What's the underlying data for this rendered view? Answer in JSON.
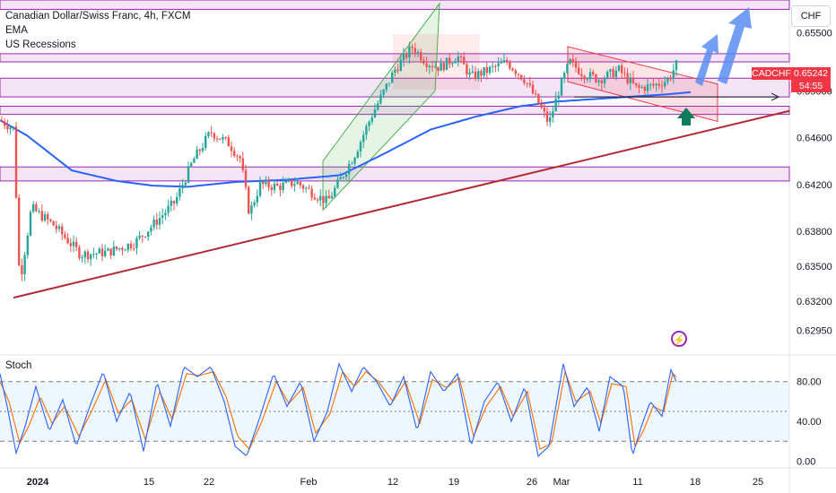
{
  "legend": {
    "title": "Canadian Dollar/Swiss Franc, 4h, FXCM",
    "indicators": [
      "EMA",
      "US Recessions"
    ]
  },
  "currency_button": "CHF",
  "price_tag": {
    "symbol": "CADCHF",
    "price": "0.65242",
    "countdown": "54:55"
  },
  "oscillator_label": "Stoch",
  "lightning_icon": "lightning-icon",
  "colors": {
    "up": "#26a69a",
    "down": "#ef5350",
    "ema": "#2962ff",
    "trendline": "#b22833",
    "zone": "#9c27b0",
    "stoch_k": "#2962ff",
    "stoch_d": "#ff6d00"
  },
  "chart_data": [
    {
      "type": "candlestick",
      "symbol": "CADCHF",
      "timeframe": "4h",
      "ylim": [
        0.6277,
        0.6578
      ],
      "y_ticks": [
        0.6295,
        0.632,
        0.635,
        0.638,
        0.642,
        0.646,
        0.65,
        0.655
      ],
      "y_tick_labels": [
        "0.62950",
        "0.63200",
        "0.63500",
        "0.63800",
        "0.64200",
        "0.64600",
        "0.65000",
        "0.65500"
      ],
      "x_tick_labels": [
        "2024",
        "15",
        "22",
        "Feb",
        "12",
        "19",
        "26",
        "Mar",
        "11",
        "18",
        "25"
      ],
      "ema_anchors": [
        [
          0,
          0.6475
        ],
        [
          30,
          0.6462
        ],
        [
          80,
          0.6432
        ],
        [
          130,
          0.6423
        ],
        [
          170,
          0.6419
        ],
        [
          210,
          0.6418
        ],
        [
          260,
          0.6422
        ],
        [
          320,
          0.6424
        ],
        [
          380,
          0.6428
        ],
        [
          430,
          0.6447
        ],
        [
          480,
          0.6467
        ],
        [
          530,
          0.6478
        ],
        [
          580,
          0.6487
        ],
        [
          620,
          0.6491
        ],
        [
          680,
          0.6494
        ],
        [
          740,
          0.6497
        ],
        [
          770,
          0.6499
        ]
      ],
      "close_anchors": [
        [
          0,
          0.6475
        ],
        [
          15,
          0.6468
        ],
        [
          22,
          0.6335
        ],
        [
          35,
          0.64
        ],
        [
          60,
          0.6385
        ],
        [
          90,
          0.636
        ],
        [
          120,
          0.6362
        ],
        [
          150,
          0.637
        ],
        [
          170,
          0.6385
        ],
        [
          195,
          0.6405
        ],
        [
          215,
          0.644
        ],
        [
          235,
          0.6465
        ],
        [
          255,
          0.6455
        ],
        [
          268,
          0.6442
        ],
        [
          278,
          0.6395
        ],
        [
          290,
          0.642
        ],
        [
          310,
          0.6418
        ],
        [
          330,
          0.6422
        ],
        [
          350,
          0.6412
        ],
        [
          365,
          0.6405
        ],
        [
          380,
          0.6425
        ],
        [
          395,
          0.6445
        ],
        [
          415,
          0.648
        ],
        [
          440,
          0.6518
        ],
        [
          460,
          0.6538
        ],
        [
          475,
          0.6525
        ],
        [
          490,
          0.652
        ],
        [
          510,
          0.653
        ],
        [
          525,
          0.6512
        ],
        [
          545,
          0.6518
        ],
        [
          565,
          0.6525
        ],
        [
          585,
          0.651
        ],
        [
          600,
          0.649
        ],
        [
          612,
          0.6472
        ],
        [
          622,
          0.6498
        ],
        [
          635,
          0.6525
        ],
        [
          650,
          0.6515
        ],
        [
          668,
          0.651
        ],
        [
          690,
          0.6518
        ],
        [
          710,
          0.6502
        ],
        [
          730,
          0.6505
        ],
        [
          745,
          0.651
        ],
        [
          755,
          0.6524
        ]
      ],
      "horizontal_zones": [
        [
          0.657,
          0.6578
        ],
        [
          0.6525,
          0.6532
        ],
        [
          0.6495,
          0.6511
        ],
        [
          0.648,
          0.6487
        ],
        [
          0.6423,
          0.6435
        ]
      ],
      "trendline": {
        "from": [
          15,
          0.6323
        ],
        "to": [
          880,
          0.6483
        ]
      },
      "ascending_channel": {
        "lower": [
          [
            360,
            0.6398
          ],
          [
            485,
            0.65
          ]
        ],
        "upper": [
          [
            360,
            0.644
          ],
          [
            490,
            0.6575
          ]
        ]
      },
      "descending_channel": {
        "upper": [
          [
            633,
            0.6538
          ],
          [
            800,
            0.6506
          ]
        ],
        "lower": [
          [
            633,
            0.6508
          ],
          [
            800,
            0.6474
          ]
        ]
      },
      "arrow_level": 0.6495,
      "projection_arrows": [
        "up",
        "up"
      ]
    },
    {
      "type": "line",
      "name": "Stoch",
      "ylim": [
        -5,
        105
      ],
      "y_ticks": [
        0,
        40,
        80
      ],
      "y_tick_labels": [
        "0.00",
        "40.00",
        "80.00"
      ],
      "levels": [
        20,
        50,
        80
      ],
      "k_anchors": [
        [
          0,
          88
        ],
        [
          8,
          55
        ],
        [
          18,
          8
        ],
        [
          28,
          35
        ],
        [
          40,
          75
        ],
        [
          55,
          30
        ],
        [
          70,
          62
        ],
        [
          85,
          15
        ],
        [
          100,
          55
        ],
        [
          115,
          90
        ],
        [
          130,
          40
        ],
        [
          145,
          70
        ],
        [
          160,
          10
        ],
        [
          175,
          80
        ],
        [
          190,
          35
        ],
        [
          205,
          95
        ],
        [
          220,
          85
        ],
        [
          235,
          95
        ],
        [
          250,
          60
        ],
        [
          262,
          15
        ],
        [
          275,
          5
        ],
        [
          290,
          45
        ],
        [
          305,
          88
        ],
        [
          320,
          55
        ],
        [
          335,
          80
        ],
        [
          350,
          20
        ],
        [
          365,
          50
        ],
        [
          378,
          98
        ],
        [
          392,
          70
        ],
        [
          405,
          95
        ],
        [
          420,
          80
        ],
        [
          435,
          55
        ],
        [
          450,
          85
        ],
        [
          465,
          30
        ],
        [
          480,
          90
        ],
        [
          495,
          70
        ],
        [
          510,
          88
        ],
        [
          525,
          15
        ],
        [
          540,
          60
        ],
        [
          555,
          80
        ],
        [
          570,
          40
        ],
        [
          585,
          75
        ],
        [
          600,
          5
        ],
        [
          612,
          15
        ],
        [
          628,
          98
        ],
        [
          640,
          55
        ],
        [
          655,
          75
        ],
        [
          668,
          30
        ],
        [
          680,
          85
        ],
        [
          695,
          75
        ],
        [
          705,
          5
        ],
        [
          715,
          35
        ],
        [
          725,
          60
        ],
        [
          738,
          45
        ],
        [
          748,
          92
        ],
        [
          755,
          78
        ]
      ],
      "d_anchors": [
        [
          0,
          80
        ],
        [
          10,
          60
        ],
        [
          22,
          18
        ],
        [
          32,
          35
        ],
        [
          45,
          65
        ],
        [
          58,
          38
        ],
        [
          72,
          55
        ],
        [
          88,
          25
        ],
        [
          102,
          50
        ],
        [
          118,
          82
        ],
        [
          132,
          48
        ],
        [
          147,
          62
        ],
        [
          162,
          22
        ],
        [
          178,
          70
        ],
        [
          192,
          42
        ],
        [
          208,
          88
        ],
        [
          222,
          86
        ],
        [
          238,
          90
        ],
        [
          252,
          65
        ],
        [
          265,
          25
        ],
        [
          278,
          12
        ],
        [
          292,
          40
        ],
        [
          308,
          80
        ],
        [
          322,
          58
        ],
        [
          338,
          74
        ],
        [
          352,
          28
        ],
        [
          368,
          48
        ],
        [
          382,
          90
        ],
        [
          395,
          75
        ],
        [
          408,
          90
        ],
        [
          422,
          80
        ],
        [
          438,
          60
        ],
        [
          452,
          80
        ],
        [
          468,
          38
        ],
        [
          482,
          82
        ],
        [
          498,
          74
        ],
        [
          512,
          84
        ],
        [
          528,
          25
        ],
        [
          542,
          55
        ],
        [
          558,
          75
        ],
        [
          572,
          45
        ],
        [
          588,
          70
        ],
        [
          602,
          12
        ],
        [
          615,
          18
        ],
        [
          630,
          90
        ],
        [
          642,
          60
        ],
        [
          658,
          70
        ],
        [
          670,
          38
        ],
        [
          682,
          78
        ],
        [
          698,
          75
        ],
        [
          708,
          15
        ],
        [
          718,
          32
        ],
        [
          728,
          55
        ],
        [
          740,
          50
        ],
        [
          750,
          88
        ],
        [
          757,
          82
        ]
      ]
    }
  ]
}
